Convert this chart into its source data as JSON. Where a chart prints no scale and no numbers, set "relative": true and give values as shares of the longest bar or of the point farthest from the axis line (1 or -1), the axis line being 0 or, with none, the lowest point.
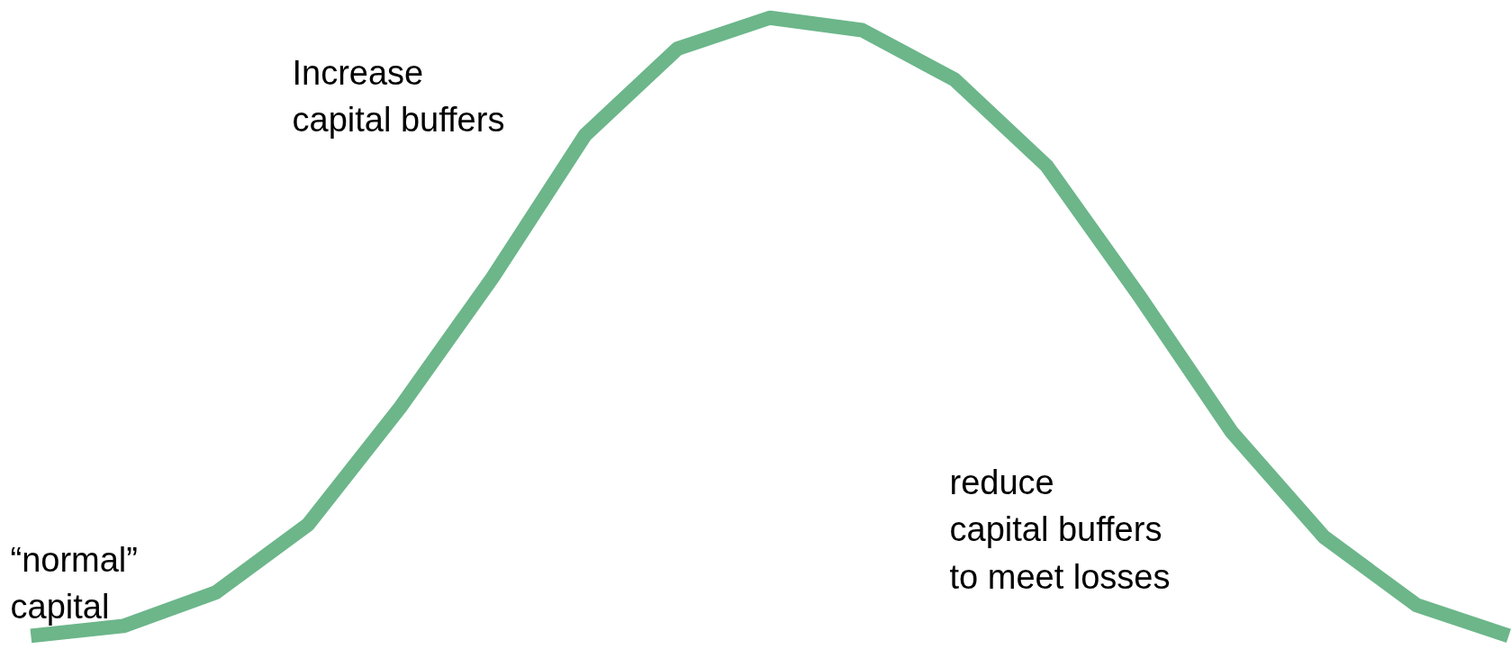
{
  "chart_data": {
    "type": "line",
    "relative": true,
    "categories": [
      null,
      null,
      null,
      null,
      null,
      null,
      null,
      null,
      null,
      null,
      null,
      null,
      null,
      null,
      null,
      null,
      null
    ],
    "series": [
      {
        "color": "#6cb68a",
        "values": [
          0,
          0.016,
          0.07,
          0.18,
          0.37,
          0.58,
          0.81,
          0.95,
          1.0,
          0.98,
          0.9,
          0.76,
          0.55,
          0.33,
          0.16,
          0.05,
          0
        ]
      }
    ],
    "annotations": [
      "“normal”\ncapital",
      "Increase\ncapital buffers",
      "reduce\ncapital buffers\nto meet losses"
    ]
  }
}
